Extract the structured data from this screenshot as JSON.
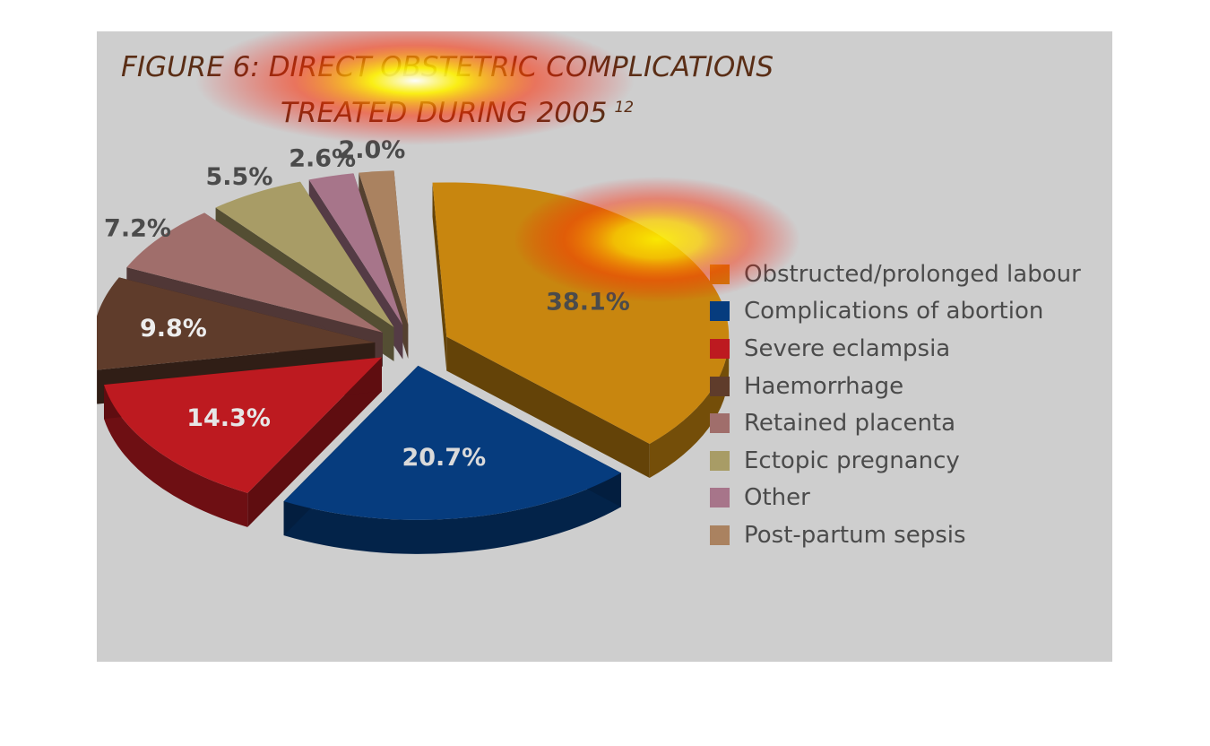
{
  "title": {
    "line1": "FIGURE 6: DIRECT OBSTETRIC COMPLICATIONS",
    "line2": "TREATED DURING 2005",
    "superscript": "12"
  },
  "chart_data": {
    "type": "pie",
    "title": "FIGURE 6: DIRECT OBSTETRIC COMPLICATIONS TREATED DURING 2005",
    "unit": "%",
    "exploded": true,
    "three_d": true,
    "legend_position": "right",
    "slices": [
      {
        "label": "Obstructed/prolonged labour",
        "value": 38.1,
        "value_label": "38.1%",
        "color": "#c8860f"
      },
      {
        "label": "Complications of abortion",
        "value": 20.7,
        "value_label": "20.7%",
        "color": "#063c7e"
      },
      {
        "label": "Severe eclampsia",
        "value": 14.3,
        "value_label": "14.3%",
        "color": "#bd1a20"
      },
      {
        "label": "Haemorrhage",
        "value": 9.8,
        "value_label": "9.8%",
        "color": "#5f3c2b"
      },
      {
        "label": "Retained placenta",
        "value": 7.2,
        "value_label": "7.2%",
        "color": "#a06e6b"
      },
      {
        "label": "Ectopic pregnancy",
        "value": 5.5,
        "value_label": "5.5%",
        "color": "#a89c66"
      },
      {
        "label": "Other",
        "value": 2.6,
        "value_label": "2.6%",
        "color": "#a7758a"
      },
      {
        "label": "Post-partum sepsis",
        "value": 2.0,
        "value_label": "2.0%",
        "color": "#aa8260"
      }
    ]
  }
}
